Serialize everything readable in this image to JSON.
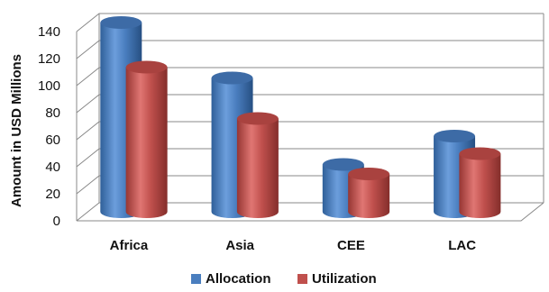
{
  "chart_data": {
    "type": "bar",
    "style": "3d-cylinder",
    "categories": [
      "Africa",
      "Asia",
      "CEE",
      "LAC"
    ],
    "series": [
      {
        "name": "Allocation",
        "values": [
          140,
          99,
          35,
          56
        ],
        "color": "#4a7ebf"
      },
      {
        "name": "Utilization",
        "values": [
          107,
          69,
          28,
          43
        ],
        "color": "#c0504d"
      }
    ],
    "ylabel": "Amount in USD Millions",
    "ylim": [
      0,
      140
    ],
    "yticks": [
      0,
      20,
      40,
      60,
      80,
      100,
      120,
      140
    ],
    "grid": true,
    "legend": "bottom"
  }
}
